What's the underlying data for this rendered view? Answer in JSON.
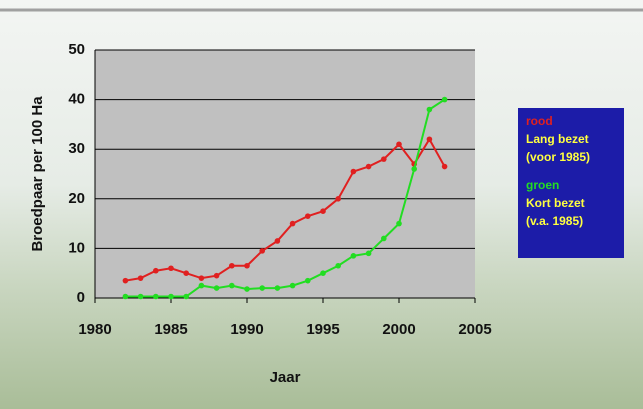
{
  "chart_data": {
    "type": "line",
    "x_label": "Jaar",
    "y_label": "Broedpaar per 100 Ha",
    "x": [
      1982,
      1983,
      1984,
      1985,
      1986,
      1987,
      1988,
      1989,
      1990,
      1991,
      1992,
      1993,
      1994,
      1995,
      1996,
      1997,
      1998,
      1999,
      2000,
      2001,
      2002,
      2003
    ],
    "series": [
      {
        "name": "rood",
        "description": [
          "Lang bezet",
          "(voor 1985)"
        ],
        "color": "#e02020",
        "values": [
          3.5,
          4,
          5.5,
          6,
          5,
          4,
          4.5,
          6.5,
          6.5,
          9.5,
          11.5,
          15,
          16.5,
          17.5,
          20,
          25.5,
          26.5,
          28,
          31,
          27,
          32,
          26.5
        ]
      },
      {
        "name": "groen",
        "description": [
          "Kort bezet",
          "(v.a. 1985)"
        ],
        "color": "#22dd22",
        "values": [
          0.3,
          0.3,
          0.3,
          0.3,
          0.3,
          2.5,
          2,
          2.5,
          1.8,
          2,
          2,
          2.5,
          3.5,
          5,
          6.5,
          8.5,
          9,
          12,
          15,
          26,
          38,
          40
        ]
      }
    ],
    "xlim": [
      1980,
      2005
    ],
    "xticks": [
      1980,
      1985,
      1990,
      1995,
      2000,
      2005
    ],
    "ylim": [
      0,
      50
    ],
    "yticks": [
      0,
      10,
      20,
      30,
      40,
      50
    ],
    "grid": true,
    "plot_color": "#c0c0c0",
    "legend_color": "#1c1ca8",
    "legend_text_color": "#ffff40"
  }
}
